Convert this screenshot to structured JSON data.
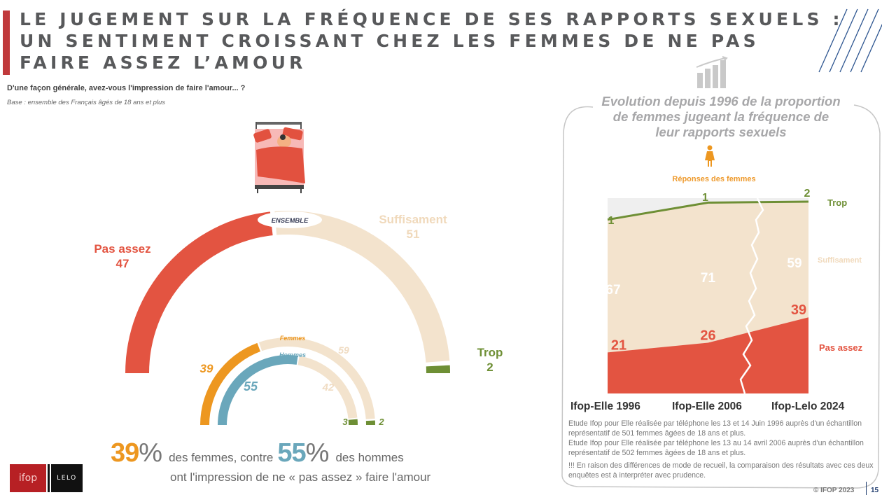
{
  "header": {
    "title_lines": [
      "LE JUGEMENT SUR LA FRÉQUENCE DE SES RAPPORTS SEXUELS :",
      "UN SENTIMENT CROISSANT CHEZ LES FEMMES DE NE PAS",
      "FAIRE ASSEZ L’AMOUR"
    ],
    "question": "D'une façon générale, avez-vous l'impression de faire l'amour... ?",
    "base": "Base : ensemble des Français âgés de 18 ans et plus"
  },
  "colors": {
    "pas_assez": "#e35441",
    "suffisament": "#f3e3cd",
    "trop": "#6e8f35",
    "femmes": "#ed9720",
    "hommes": "#6aa7bb",
    "title_bar": "#c0393b",
    "stripes": "#2d5590"
  },
  "chart_data": [
    {
      "type": "pie",
      "subtype": "half-donut",
      "title": "ENSEMBLE",
      "series": [
        {
          "name": "Pas assez",
          "value": 47
        },
        {
          "name": "Suffisament",
          "value": 51
        },
        {
          "name": "Trop",
          "value": 2
        }
      ],
      "labels": {
        "pas_assez": {
          "name": "Pas assez",
          "value": "47"
        },
        "suffisament": {
          "name": "Suffisament",
          "value": "51"
        },
        "trop": {
          "name": "Trop",
          "value": "2"
        }
      }
    },
    {
      "type": "pie",
      "subtype": "half-donut",
      "title": "Femmes",
      "series": [
        {
          "name": "Pas assez",
          "value": 39
        },
        {
          "name": "Suffisament",
          "value": 59
        },
        {
          "name": "Trop",
          "value": 2
        }
      ],
      "value_labels": [
        "39",
        "59",
        "2"
      ]
    },
    {
      "type": "pie",
      "subtype": "half-donut",
      "title": "Hommes",
      "series": [
        {
          "name": "Pas assez",
          "value": 55
        },
        {
          "name": "Suffisament",
          "value": 42
        },
        {
          "name": "Trop",
          "value": 3
        }
      ],
      "value_labels": [
        "55",
        "42",
        "3"
      ]
    },
    {
      "type": "area",
      "stacked": true,
      "title": "Evolution depuis 1996 de la proportion de femmes jugeant la fréquence de leur rapports sexuels",
      "subtitle": "Réponses des femmes",
      "categories": [
        "Ifop-Elle 1996",
        "Ifop-Elle 2006",
        "Ifop-Lelo 2024"
      ],
      "series": [
        {
          "name": "Pas assez",
          "values": [
            21,
            26,
            39
          ]
        },
        {
          "name": "Suffisament",
          "values": [
            67,
            71,
            59
          ]
        },
        {
          "name": "Trop",
          "values": [
            1,
            1,
            2
          ]
        }
      ],
      "ylim": [
        0,
        100
      ],
      "legend_placement": "right",
      "legend": [
        "Trop",
        "Suffisament",
        "Pas assez"
      ]
    }
  ],
  "summary": {
    "femmes_pct": "39",
    "percent_sign": "%",
    "text1": "des femmes, contre",
    "hommes_pct": "55",
    "text2": "des hommes",
    "line2": "ont  l'impression de ne « pas assez » faire l'amour"
  },
  "logos": {
    "ifop": "ifop",
    "lelo": "LELO"
  },
  "right_panel": {
    "title": "Evolution depuis 1996 de la proportion de femmes jugeant la fréquence de leur rapports sexuels",
    "title_lines": [
      "Evolution depuis 1996 de la proportion",
      "de femmes jugeant la fréquence de",
      "leur rapports sexuels"
    ],
    "responses_label": "Réponses des femmes",
    "notes": [
      " Etude Ifop pour Elle réalisée par téléphone les 13 et 14 Juin 1996 auprès d'un échantillon représentatif de 501 femmes âgées de 18 ans et plus.",
      "  Etude Ifop pour Elle réalisée par téléphone les 13 au 14 avril 2006 auprès d'un échantillon représentatif de 502 femmes âgées de 18 ans et plus.",
      "!!! En raison des différences de mode de recueil, la comparaison des résultats avec ces deux enquêtes est à interpréter avec prudence."
    ]
  },
  "footer": {
    "copyright": "© IFOP 2023",
    "page": "15"
  }
}
